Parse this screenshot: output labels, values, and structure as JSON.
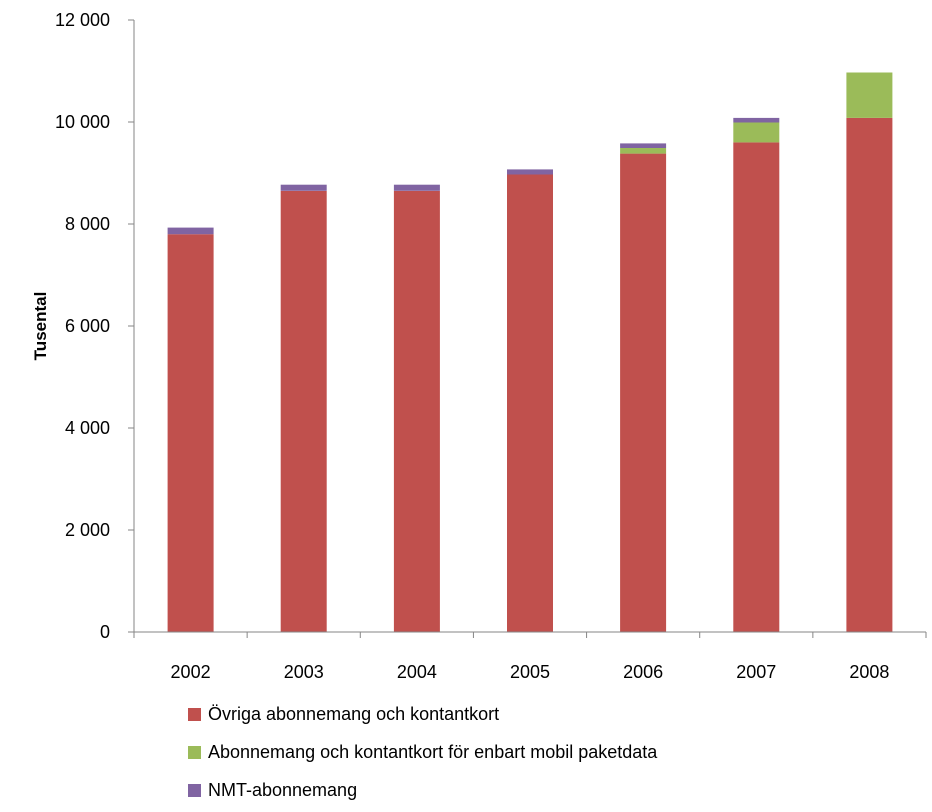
{
  "chart_data": {
    "type": "bar",
    "stacked": true,
    "categories": [
      "2002",
      "2003",
      "2004",
      "2005",
      "2006",
      "2007",
      "2008"
    ],
    "series": [
      {
        "name": "Övriga abonnemang och kontantkort",
        "color": "#c0504d",
        "values": [
          7800,
          8650,
          8650,
          8970,
          9380,
          9600,
          10080
        ]
      },
      {
        "name": "Abonnemang och kontantkort för enbart mobil paketdata",
        "color": "#9bbb59",
        "values": [
          0,
          0,
          0,
          0,
          110,
          390,
          890
        ]
      },
      {
        "name": "NMT-abonnemang",
        "color": "#8064a2",
        "values": [
          130,
          120,
          120,
          100,
          90,
          90,
          0
        ]
      }
    ],
    "title": "",
    "xlabel": "",
    "ylabel": "Tusental",
    "ylim": [
      0,
      12000
    ],
    "yticks": [
      0,
      2000,
      4000,
      6000,
      8000,
      10000,
      12000
    ],
    "ytick_labels": [
      "0",
      "2 000",
      "4 000",
      "6 000",
      "8 000",
      "10 000",
      "12 000"
    ],
    "grid": false,
    "legend_position": "bottom"
  }
}
